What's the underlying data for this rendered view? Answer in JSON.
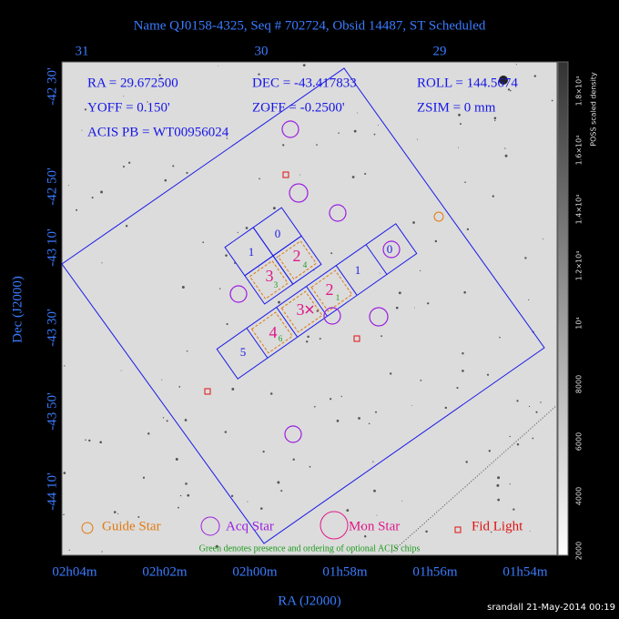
{
  "title": "Name QJ0158-4325, Seq # 702724, Obsid 14487, ST Scheduled",
  "params": [
    "RA = 29.672500",
    "DEC = -43.417833",
    "ROLL = 144.5674",
    "YOFF = 0.150'",
    "ZOFF = -0.2500'",
    "ZSIM = 0 mm",
    "ACIS PB = WT00956024"
  ],
  "top_axis": {
    "tick_labels": [
      "31",
      "30",
      "29"
    ]
  },
  "x_axis": {
    "label": "RA (J2000)",
    "tick_labels": [
      "02h04m",
      "02h02m",
      "02h00m",
      "01h58m",
      "01h56m",
      "01h54m"
    ]
  },
  "y_axis": {
    "label": "Dec (J2000)",
    "tick_labels": [
      "-42 30'",
      "-42 50'",
      "-43 10'",
      "-43 30'",
      "-43 50'",
      "-44 10'"
    ]
  },
  "colorbar": {
    "label": "POSS scaled density",
    "tick_labels": [
      "2000",
      "4000",
      "6000",
      "8000",
      "10⁴",
      "1.2×10⁴",
      "1.4×10⁴",
      "1.6×10⁴",
      "1.8×10⁴"
    ]
  },
  "chips": {
    "i_array": [
      "0",
      "1",
      "2",
      "3"
    ],
    "s_array": [
      "0",
      "1",
      "2",
      "3",
      "4",
      "5"
    ],
    "optional": [
      "4",
      "3",
      "1",
      "6"
    ]
  },
  "legend": [
    "Guide Star",
    "Acq Star",
    "Mon Star",
    "Fid Light"
  ],
  "note": "Green denotes presence and ordering of optional ACIS chips",
  "footer": "srandall 21-May-2014 00:19"
}
